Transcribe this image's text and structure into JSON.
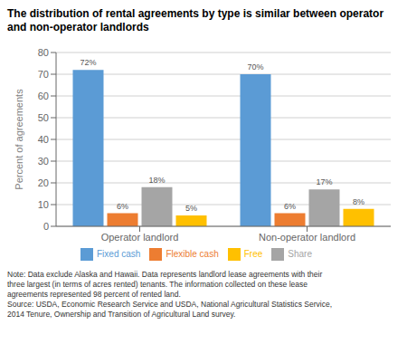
{
  "chart_data": {
    "type": "bar",
    "title": "The distribution of rental agreements by type is similar between operator and non-operator landlords",
    "ylabel": "Percent of agreements",
    "categories": [
      "Operator landlord",
      "Non-operator landlord"
    ],
    "series": [
      {
        "name": "Fixed cash",
        "color": "#5B9BD5",
        "values": [
          72,
          70
        ],
        "value_labels": [
          "72%",
          "70%"
        ]
      },
      {
        "name": "Flexible cash",
        "color": "#ED7D31",
        "values": [
          6,
          6
        ],
        "value_labels": [
          "6%",
          "6%"
        ]
      },
      {
        "name": "Share",
        "color": "#A5A5A5",
        "values": [
          18,
          17
        ],
        "value_labels": [
          "18%",
          "17%"
        ]
      },
      {
        "name": "Free",
        "color": "#FFC000",
        "values": [
          5,
          8
        ],
        "value_labels": [
          "5%",
          "8%"
        ]
      }
    ],
    "ylim": [
      0,
      80
    ],
    "yticks": [
      0,
      10,
      20,
      30,
      40,
      50,
      60,
      70,
      80
    ],
    "grid": true,
    "legend": "bottom",
    "data_labels": true,
    "annotations": [
      "Note: Data exclude Alaska and Hawaii. Data represents landlord lease agreements with their",
      "three largest (in terms of acres rented) tenants. The information collected on these lease",
      "agreements represented 98 percent of rented land.",
      "Source: USDA, Economic Research Service and USDA, National Agricultural Statistics Service,",
      "2014 Tenure, Ownership and Transition of Agricultural Land survey."
    ]
  }
}
